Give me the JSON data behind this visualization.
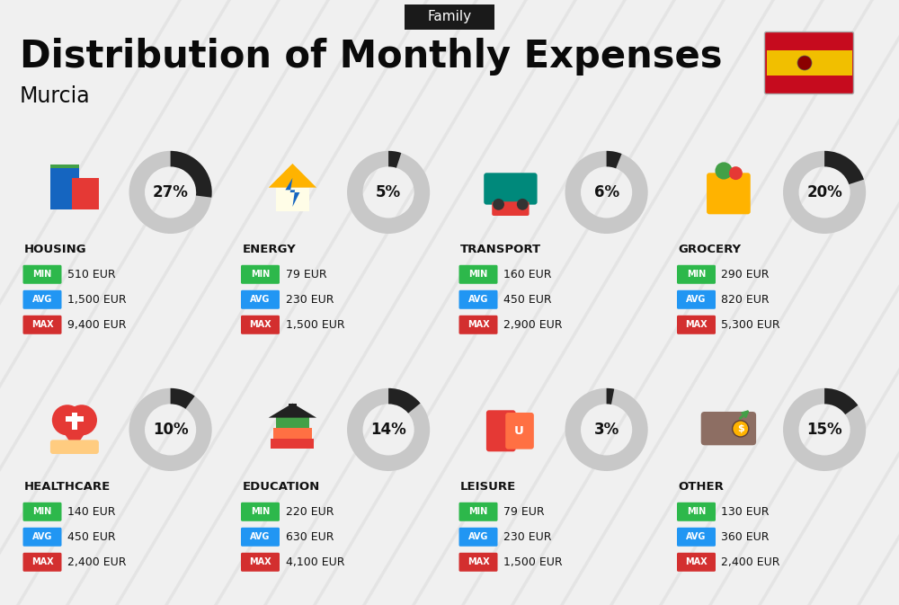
{
  "title": "Distribution of Monthly Expenses",
  "subtitle": "Family",
  "location": "Murcia",
  "background_color": "#f0f0f0",
  "categories": [
    {
      "name": "HOUSING",
      "percent": 27,
      "min": "510 EUR",
      "avg": "1,500 EUR",
      "max": "9,400 EUR",
      "row": 0,
      "col": 0
    },
    {
      "name": "ENERGY",
      "percent": 5,
      "min": "79 EUR",
      "avg": "230 EUR",
      "max": "1,500 EUR",
      "row": 0,
      "col": 1
    },
    {
      "name": "TRANSPORT",
      "percent": 6,
      "min": "160 EUR",
      "avg": "450 EUR",
      "max": "2,900 EUR",
      "row": 0,
      "col": 2
    },
    {
      "name": "GROCERY",
      "percent": 20,
      "min": "290 EUR",
      "avg": "820 EUR",
      "max": "5,300 EUR",
      "row": 0,
      "col": 3
    },
    {
      "name": "HEALTHCARE",
      "percent": 10,
      "min": "140 EUR",
      "avg": "450 EUR",
      "max": "2,400 EUR",
      "row": 1,
      "col": 0
    },
    {
      "name": "EDUCATION",
      "percent": 14,
      "min": "220 EUR",
      "avg": "630 EUR",
      "max": "4,100 EUR",
      "row": 1,
      "col": 1
    },
    {
      "name": "LEISURE",
      "percent": 3,
      "min": "79 EUR",
      "avg": "230 EUR",
      "max": "1,500 EUR",
      "row": 1,
      "col": 2
    },
    {
      "name": "OTHER",
      "percent": 15,
      "min": "130 EUR",
      "avg": "360 EUR",
      "max": "2,400 EUR",
      "row": 1,
      "col": 3
    }
  ],
  "min_color": "#2db84b",
  "avg_color": "#2196f3",
  "max_color": "#d32f2f",
  "label_color": "#ffffff",
  "name_color": "#111111",
  "percent_color": "#111111",
  "arc_dark_color": "#222222",
  "arc_bg_color": "#c8c8c8",
  "arc_inner_color": "#f0f0f0",
  "title_color": "#0a0a0a",
  "subtitle_bg": "#1a1a1a",
  "subtitle_color": "#ffffff",
  "stripe_color": "#e0e0e0",
  "flag_red": "#c60b1e",
  "flag_yellow": "#f1bf00"
}
